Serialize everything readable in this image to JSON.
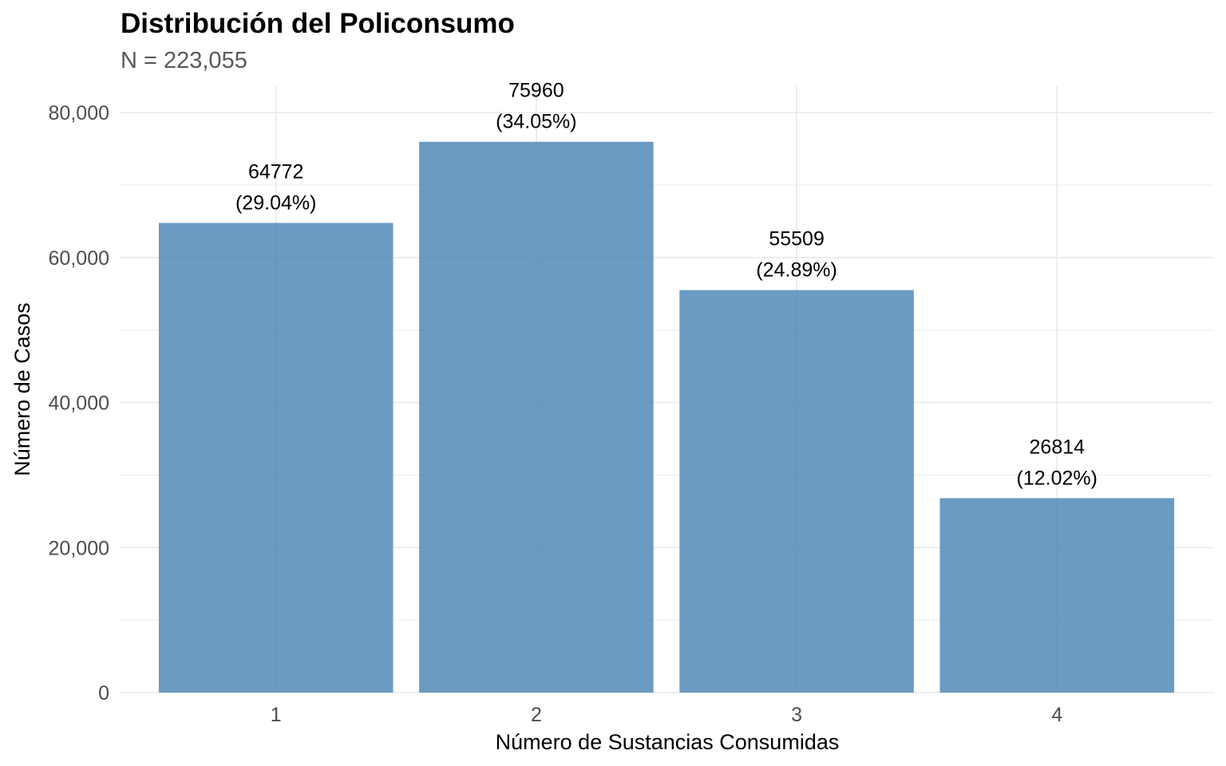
{
  "chart_data": {
    "type": "bar",
    "title": "Distribución del Policonsumo",
    "subtitle": "N = 223,055",
    "xlabel": "Número de Sustancias Consumidas",
    "ylabel": "Número de Casos",
    "categories": [
      "1",
      "2",
      "3",
      "4"
    ],
    "values": [
      64772,
      75960,
      55509,
      26814
    ],
    "labels": [
      [
        "64772",
        "(29.04%)"
      ],
      [
        "75960",
        "(34.05%)"
      ],
      [
        "55509",
        "(24.89%)"
      ],
      [
        "26814",
        "(12.02%)"
      ]
    ],
    "ylim": [
      0,
      83600
    ],
    "yticks": [
      0,
      20000,
      40000,
      60000,
      80000
    ],
    "ytick_labels": [
      "0",
      "20,000",
      "40,000",
      "60,000",
      "80,000"
    ],
    "grid": true,
    "bar_color": "#4682B4",
    "bar_opacity": 0.8,
    "grid_color": "#EBEBEB"
  }
}
